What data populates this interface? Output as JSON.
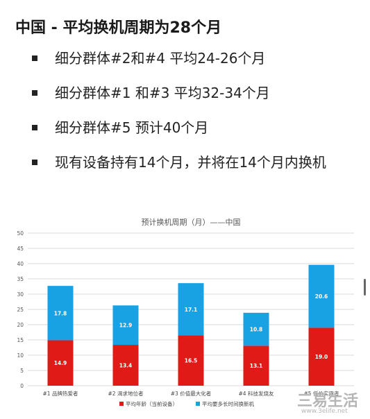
{
  "heading": "中国 - 平均换机周期为28个月",
  "bullets": [
    {
      "text": "细分群体#2和#4 平均24-26个月"
    },
    {
      "text": "细分群体#1 和#3 平均32-34个月"
    },
    {
      "text": "细分群体#5 预计40个月"
    },
    {
      "text": "现有设备持有14个月，并将在14个月内换机"
    }
  ],
  "watermark": {
    "main": "三易生活",
    "url": "www.3elife.net"
  },
  "colors": {
    "series_bottom": "#e01b17",
    "series_top": "#19a2e3"
  },
  "chart_data": {
    "type": "bar",
    "stacked": true,
    "title": "预计换机周期（月）——中国",
    "categories": [
      "#1 品牌热爱者",
      "#2 渴求地位者",
      "#3 价值最大化者",
      "#4 科技发烧友",
      "#5 低价实用者"
    ],
    "series": [
      {
        "name": "平均年龄（当前设备）",
        "values": [
          14.9,
          13.4,
          16.5,
          13.1,
          19.0
        ],
        "labels": [
          "14.9",
          "13.4",
          "16.5",
          "13.1",
          "19.0"
        ],
        "color": "#e01b17"
      },
      {
        "name": "平均要多长时间换新机",
        "values": [
          17.8,
          12.9,
          17.1,
          10.8,
          20.6
        ],
        "labels": [
          "17.8",
          "12.9",
          "17.1",
          "10.8",
          "20.6"
        ],
        "color": "#19a2e3"
      }
    ],
    "yticks": [
      "0",
      "5",
      "10",
      "15",
      "20",
      "25",
      "30",
      "35",
      "40",
      "45",
      "50"
    ],
    "ylim": [
      0,
      50
    ],
    "grid": true,
    "legend": "bottom"
  }
}
